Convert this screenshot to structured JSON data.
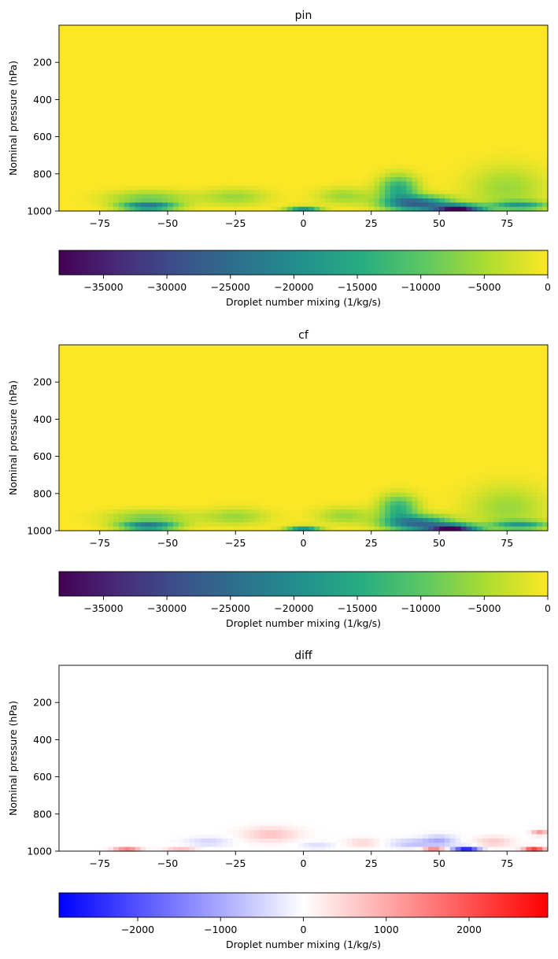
{
  "chart_data": [
    {
      "type": "heatmap",
      "title": "pin",
      "xlabel": "",
      "ylabel": "Nominal pressure (hPa)",
      "xlim": [
        -90,
        90
      ],
      "ylim": [
        1000,
        0
      ],
      "xticks": [
        -75,
        -50,
        -25,
        0,
        25,
        50,
        75
      ],
      "yticks": [
        200,
        400,
        600,
        800,
        1000
      ],
      "colormap": "viridis",
      "colorbar": {
        "label": "Droplet number mixing (1/kg/s)",
        "range": [
          -38500,
          0
        ],
        "ticks": [
          -35000,
          -30000,
          -25000,
          -20000,
          -15000,
          -10000,
          -5000,
          0
        ]
      },
      "features": [
        {
          "lat": 57,
          "p": 985,
          "value": -38000,
          "lat_width": 9,
          "p_width": 18
        },
        {
          "lat": 42,
          "p": 960,
          "value": -26000,
          "lat_width": 12,
          "p_width": 40
        },
        {
          "lat": 35,
          "p": 880,
          "value": -15000,
          "lat_width": 7,
          "p_width": 70
        },
        {
          "lat": -57,
          "p": 975,
          "value": -24000,
          "lat_width": 10,
          "p_width": 20
        },
        {
          "lat": -57,
          "p": 930,
          "value": -8000,
          "lat_width": 15,
          "p_width": 40
        },
        {
          "lat": 0,
          "p": 985,
          "value": -20000,
          "lat_width": 6,
          "p_width": 12
        },
        {
          "lat": 80,
          "p": 970,
          "value": -16000,
          "lat_width": 10,
          "p_width": 22
        },
        {
          "lat": -25,
          "p": 925,
          "value": -6000,
          "lat_width": 12,
          "p_width": 45
        },
        {
          "lat": 15,
          "p": 920,
          "value": -6000,
          "lat_width": 10,
          "p_width": 45
        },
        {
          "lat": 75,
          "p": 880,
          "value": -6000,
          "lat_width": 14,
          "p_width": 120
        }
      ]
    },
    {
      "type": "heatmap",
      "title": "cf",
      "xlabel": "",
      "ylabel": "Nominal pressure (hPa)",
      "xlim": [
        -90,
        90
      ],
      "ylim": [
        1000,
        0
      ],
      "xticks": [
        -75,
        -50,
        -25,
        0,
        25,
        50,
        75
      ],
      "yticks": [
        200,
        400,
        600,
        800,
        1000
      ],
      "colormap": "viridis",
      "colorbar": {
        "label": "Droplet number mixing (1/kg/s)",
        "range": [
          -38500,
          0
        ],
        "ticks": [
          -35000,
          -30000,
          -25000,
          -20000,
          -15000,
          -10000,
          -5000,
          0
        ]
      },
      "features": [
        {
          "lat": 55,
          "p": 985,
          "value": -37000,
          "lat_width": 9,
          "p_width": 18
        },
        {
          "lat": 42,
          "p": 960,
          "value": -24000,
          "lat_width": 12,
          "p_width": 40
        },
        {
          "lat": 35,
          "p": 880,
          "value": -14000,
          "lat_width": 7,
          "p_width": 70
        },
        {
          "lat": -57,
          "p": 975,
          "value": -24000,
          "lat_width": 10,
          "p_width": 20
        },
        {
          "lat": -57,
          "p": 930,
          "value": -8000,
          "lat_width": 15,
          "p_width": 40
        },
        {
          "lat": 0,
          "p": 985,
          "value": -20000,
          "lat_width": 6,
          "p_width": 12
        },
        {
          "lat": 80,
          "p": 970,
          "value": -16000,
          "lat_width": 10,
          "p_width": 22
        },
        {
          "lat": -25,
          "p": 925,
          "value": -6000,
          "lat_width": 12,
          "p_width": 45
        },
        {
          "lat": 15,
          "p": 920,
          "value": -6000,
          "lat_width": 10,
          "p_width": 45
        },
        {
          "lat": 75,
          "p": 880,
          "value": -6000,
          "lat_width": 14,
          "p_width": 120
        }
      ]
    },
    {
      "type": "heatmap",
      "title": "diff",
      "xlabel": "",
      "ylabel": "Nominal pressure (hPa)",
      "xlim": [
        -90,
        90
      ],
      "ylim": [
        1000,
        0
      ],
      "xticks": [
        -75,
        -50,
        -25,
        0,
        25,
        50,
        75
      ],
      "yticks": [
        200,
        400,
        600,
        800,
        1000
      ],
      "colormap": "bwr",
      "colorbar": {
        "label": "Droplet number mixing (1/kg/s)",
        "range": [
          -2950,
          2950
        ],
        "ticks": [
          -2000,
          -1000,
          0,
          1000,
          2000
        ]
      },
      "features": [
        {
          "lat": 60,
          "p": 985,
          "value": -2800,
          "lat_width": 5,
          "p_width": 12
        },
        {
          "lat": 50,
          "p": 945,
          "value": -900,
          "lat_width": 6,
          "p_width": 30
        },
        {
          "lat": 40,
          "p": 960,
          "value": -700,
          "lat_width": 8,
          "p_width": 25
        },
        {
          "lat": 48,
          "p": 985,
          "value": 1800,
          "lat_width": 4,
          "p_width": 10
        },
        {
          "lat": 85,
          "p": 985,
          "value": 2500,
          "lat_width": 4,
          "p_width": 10
        },
        {
          "lat": 87,
          "p": 900,
          "value": 1200,
          "lat_width": 3,
          "p_width": 15
        },
        {
          "lat": -65,
          "p": 985,
          "value": 1600,
          "lat_width": 5,
          "p_width": 10
        },
        {
          "lat": -45,
          "p": 985,
          "value": 800,
          "lat_width": 6,
          "p_width": 10
        },
        {
          "lat": -12,
          "p": 910,
          "value": 700,
          "lat_width": 10,
          "p_width": 40
        },
        {
          "lat": -35,
          "p": 950,
          "value": -500,
          "lat_width": 8,
          "p_width": 25
        },
        {
          "lat": 22,
          "p": 955,
          "value": 500,
          "lat_width": 6,
          "p_width": 25
        },
        {
          "lat": 70,
          "p": 950,
          "value": 600,
          "lat_width": 7,
          "p_width": 30
        },
        {
          "lat": 5,
          "p": 970,
          "value": -400,
          "lat_width": 6,
          "p_width": 20
        }
      ]
    }
  ]
}
